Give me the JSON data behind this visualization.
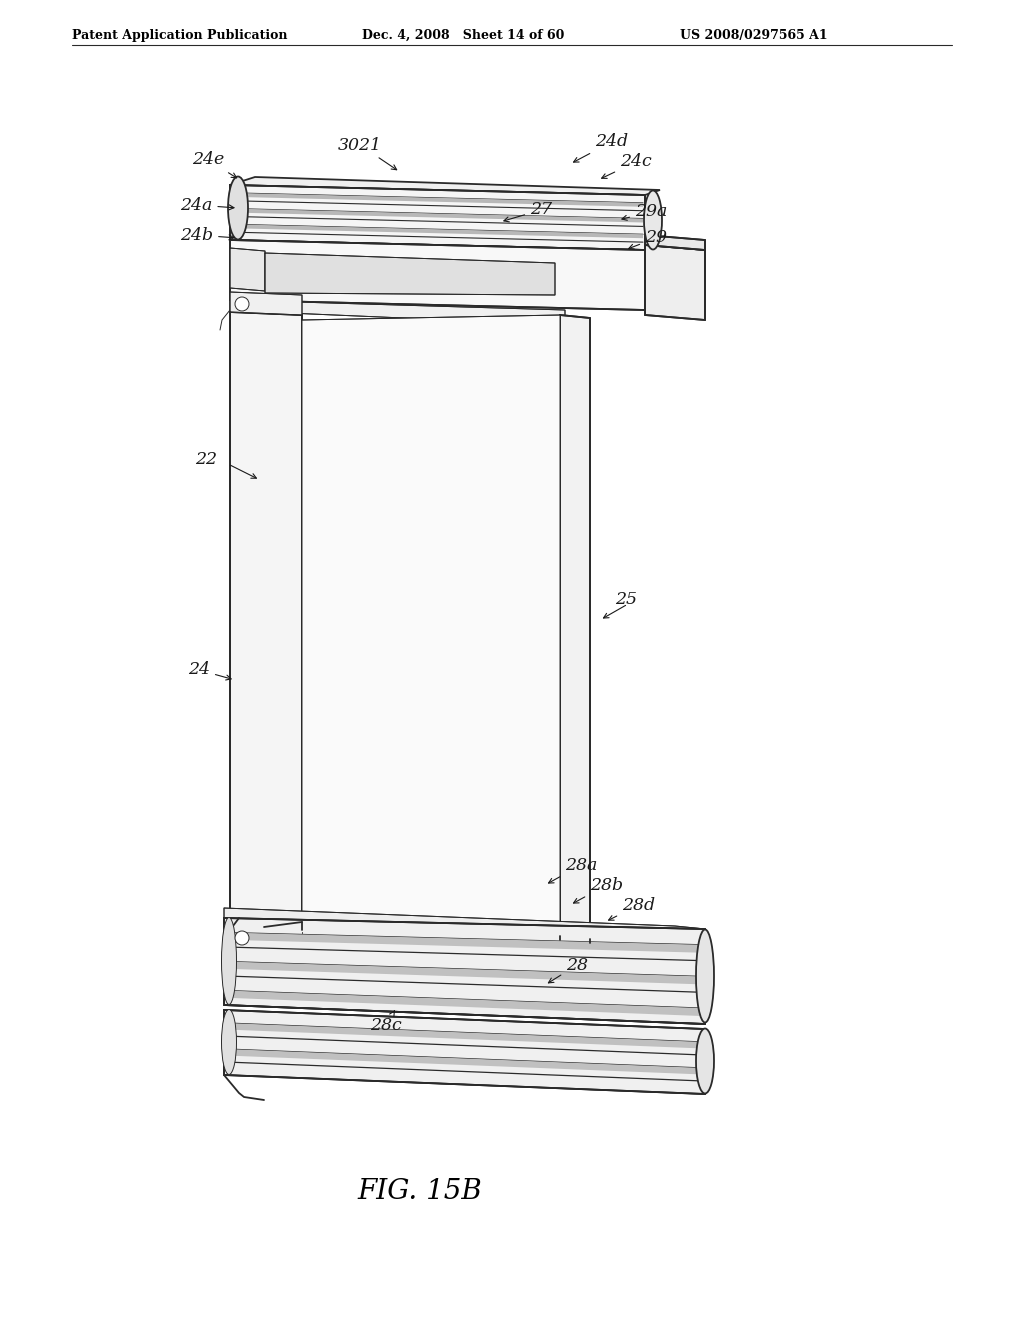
{
  "bg_color": "#ffffff",
  "lc": "#2a2a2a",
  "lw": 1.3,
  "thin": 0.7,
  "header_left": "Patent Application Publication",
  "header_mid": "Dec. 4, 2008   Sheet 14 of 60",
  "header_right": "US 2008/0297565 A1",
  "figure_label": "FIG. 15B"
}
